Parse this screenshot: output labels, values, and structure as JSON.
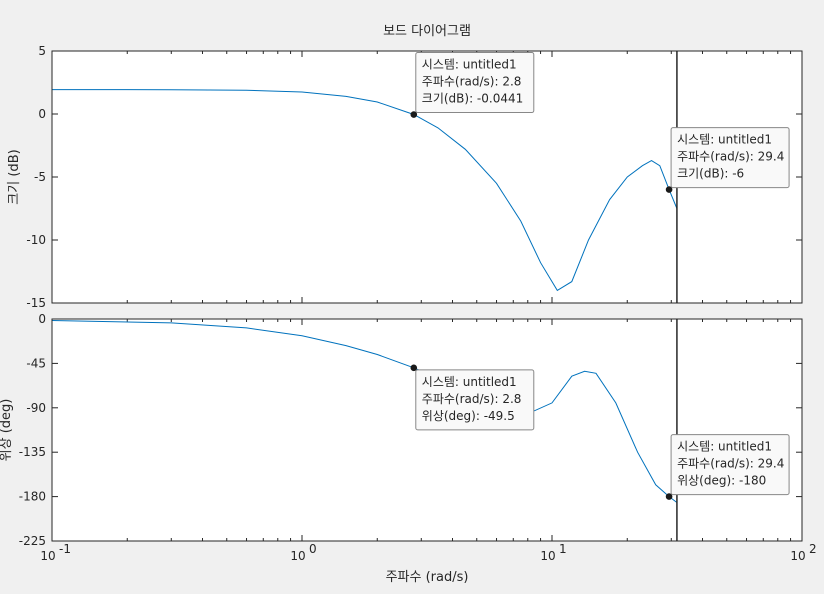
{
  "chart_data": {
    "type": "line",
    "title": "보드 다이어그램",
    "xlabel": "주파수  (rad/s)",
    "xscale": "log",
    "xlim": [
      0.1,
      100
    ],
    "x_ticks": [
      {
        "value": 0.1,
        "base": "10",
        "exp": "-1"
      },
      {
        "value": 1,
        "base": "10",
        "exp": "0"
      },
      {
        "value": 10,
        "base": "10",
        "exp": "1"
      },
      {
        "value": 100,
        "base": "10",
        "exp": "2"
      }
    ],
    "line_color": "#0072bd",
    "cursor_x": 31.6,
    "panels": [
      {
        "name": "magnitude",
        "ylabel": "크기 (dB)",
        "ylim": [
          -15,
          5
        ],
        "yticks": [
          5,
          0,
          -5,
          -10,
          -15
        ],
        "x": [
          0.1,
          0.3,
          0.6,
          1.0,
          1.5,
          2.0,
          2.8,
          3.5,
          4.5,
          6,
          7.5,
          9,
          10.5,
          12,
          14,
          17,
          20,
          23,
          25,
          27,
          29.4,
          31.6
        ],
        "y": [
          1.94,
          1.93,
          1.88,
          1.75,
          1.4,
          0.95,
          -0.04,
          -1.1,
          -2.8,
          -5.5,
          -8.5,
          -11.8,
          -14.0,
          -13.3,
          -10.0,
          -6.8,
          -5.0,
          -4.1,
          -3.7,
          -4.1,
          -6.0,
          -7.5
        ]
      },
      {
        "name": "phase",
        "ylabel": "위상 (deg)",
        "ylim": [
          -225,
          0
        ],
        "yticks": [
          0,
          -45,
          -90,
          -135,
          -180,
          -225
        ],
        "x": [
          0.1,
          0.3,
          0.6,
          1.0,
          1.5,
          2.0,
          2.8,
          3.5,
          4.5,
          5.5,
          6.5,
          7.5,
          8.5,
          10,
          12,
          13.5,
          15,
          18,
          22,
          26,
          29.4,
          31.6
        ],
        "y": [
          -1.5,
          -4.0,
          -9.0,
          -17.0,
          -27.0,
          -36.0,
          -49.5,
          -60.0,
          -72.0,
          -81.0,
          -88.0,
          -92.0,
          -93.0,
          -85.0,
          -58.0,
          -53.0,
          -55.0,
          -85.0,
          -135.0,
          -168.0,
          -180.0,
          -186.0
        ]
      }
    ],
    "datatips": [
      {
        "panel": 0,
        "x": 2.8,
        "y": -0.0441,
        "side": "upper-right",
        "lines": [
          "시스템: untitled1",
          "주파수(rad/s): 2.8",
          "크기(dB): -0.0441"
        ]
      },
      {
        "panel": 0,
        "x": 29.4,
        "y": -6,
        "side": "upper-right",
        "lines": [
          "시스템: untitled1",
          "주파수(rad/s): 29.4",
          "크기(dB): -6"
        ]
      },
      {
        "panel": 1,
        "x": 2.8,
        "y": -49.5,
        "side": "lower-right",
        "lines": [
          "시스템: untitled1",
          "주파수(rad/s): 2.8",
          "위상(deg): -49.5"
        ]
      },
      {
        "panel": 1,
        "x": 29.4,
        "y": -180,
        "side": "upper-right",
        "lines": [
          "시스템: untitled1",
          "주파수(rad/s): 29.4",
          "위상(deg): -180"
        ]
      }
    ]
  }
}
